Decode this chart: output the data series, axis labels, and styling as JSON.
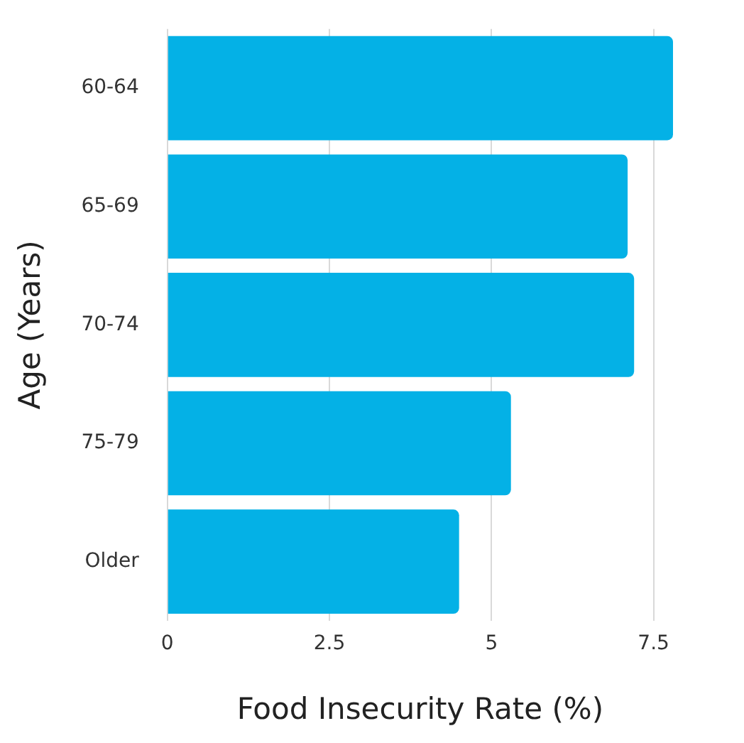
{
  "chart_data": {
    "type": "bar",
    "orientation": "horizontal",
    "xlabel": "Food Insecurity Rate (%)",
    "ylabel": "Age (Years)",
    "categories": [
      "60-64",
      "65-69",
      "70-74",
      "75-79",
      "Older"
    ],
    "values": [
      7.8,
      7.1,
      7.2,
      5.3,
      4.5
    ],
    "color": "#04b1e6",
    "xlim": [
      0,
      7.8
    ],
    "xticks": [
      0,
      {
        "value": 2.5,
        "label": "2.5"
      },
      5,
      {
        "value": 7.5,
        "label": "7.5"
      }
    ],
    "grid": "x",
    "legend": false
  }
}
